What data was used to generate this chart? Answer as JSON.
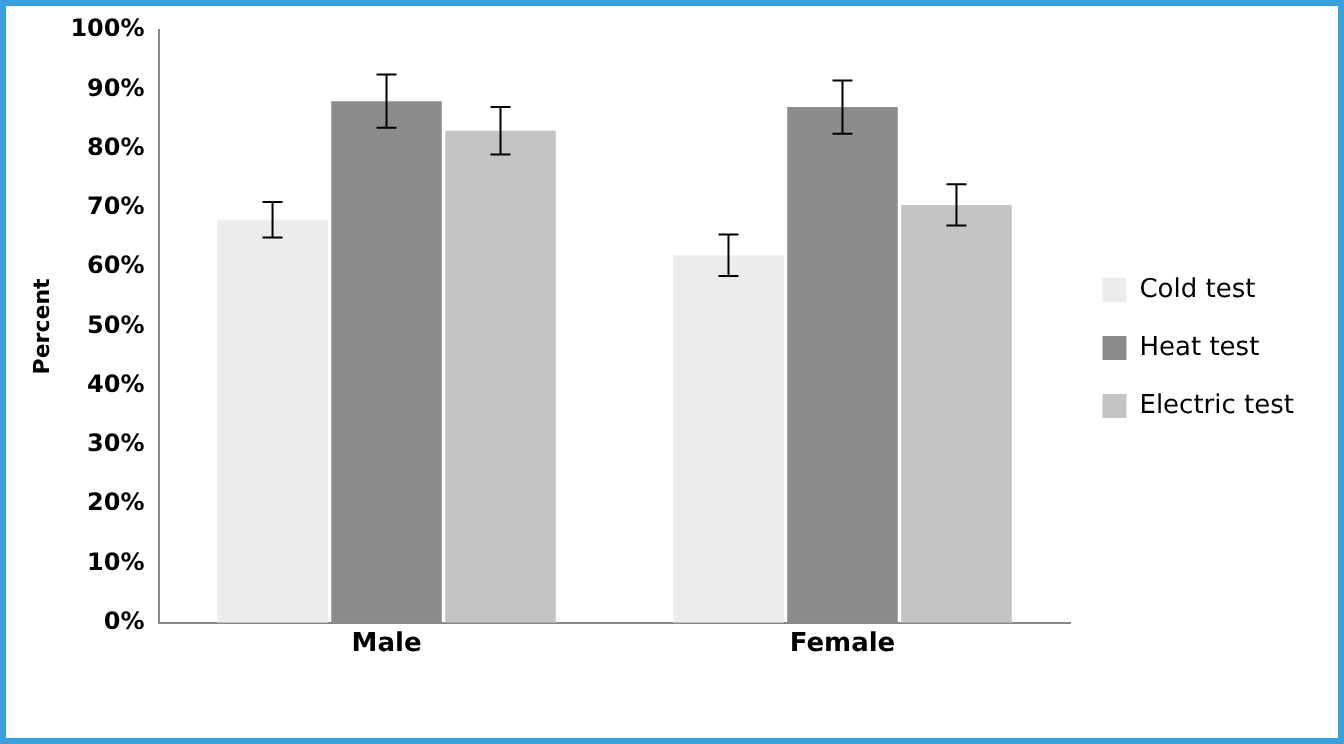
{
  "chart_data": {
    "type": "bar",
    "ylabel": "Percent",
    "categories": [
      "Male",
      "Female"
    ],
    "series": [
      {
        "name": "Cold test",
        "color": "#ececec",
        "values": [
          68,
          62
        ],
        "errors": [
          3,
          3.5
        ]
      },
      {
        "name": "Heat test",
        "color": "#8c8c8c",
        "values": [
          88,
          87
        ],
        "errors": [
          4.5,
          4.5
        ]
      },
      {
        "name": "Electric test",
        "color": "#c4c4c4",
        "values": [
          83,
          70.5
        ],
        "errors": [
          4,
          3.5
        ]
      }
    ],
    "ylim": [
      0,
      100
    ],
    "yticks": [
      {
        "value": 0,
        "label": "0%"
      },
      {
        "value": 10,
        "label": "10%"
      },
      {
        "value": 20,
        "label": "20%"
      },
      {
        "value": 30,
        "label": "30%"
      },
      {
        "value": 40,
        "label": "40%"
      },
      {
        "value": 50,
        "label": "50%"
      },
      {
        "value": 60,
        "label": "60%"
      },
      {
        "value": 70,
        "label": "70%"
      },
      {
        "value": 80,
        "label": "80%"
      },
      {
        "value": 90,
        "label": "90%"
      },
      {
        "value": 100,
        "label": "100%"
      }
    ],
    "grid": false,
    "legend": "right"
  }
}
